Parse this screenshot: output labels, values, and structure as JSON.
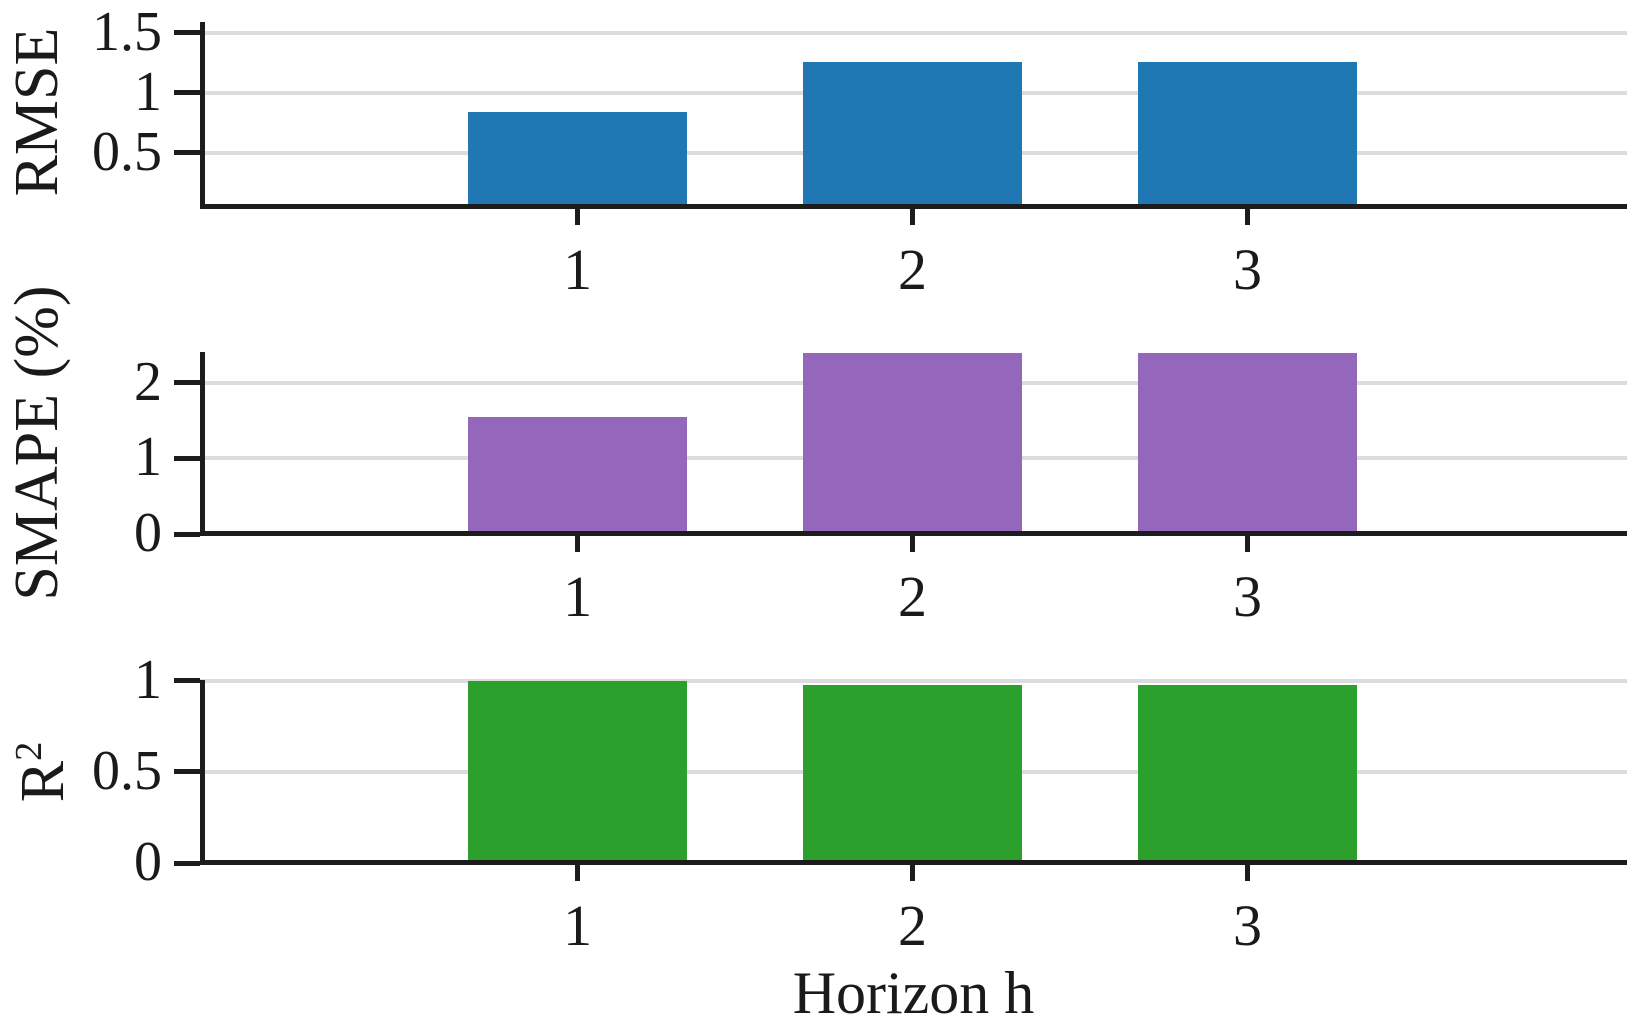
{
  "chart_data": {
    "type": "bar",
    "title": "",
    "xlabel": "Horizon h",
    "categories": [
      "1",
      "2",
      "3"
    ],
    "grid": true,
    "legend": false,
    "subplots": [
      {
        "ylabel": "RMSE",
        "ylabel_sup": "",
        "bar_color": "#1f77b4",
        "values": [
          0.84,
          1.26,
          1.26
        ],
        "yticks": [
          {
            "value": 0.5,
            "label": "0.5"
          },
          {
            "value": 1,
            "label": "1"
          },
          {
            "value": 1.5,
            "label": "1.5"
          }
        ],
        "view": {
          "min": 0.05,
          "max": 1.59
        }
      },
      {
        "ylabel": "SMAPE (%)",
        "ylabel_sup": "",
        "bar_color": "#9467bd",
        "values": [
          1.55,
          2.4,
          2.4
        ],
        "yticks": [
          {
            "value": 0,
            "label": "0"
          },
          {
            "value": 1,
            "label": "1"
          },
          {
            "value": 2,
            "label": "2"
          }
        ],
        "view": {
          "min": 0,
          "max": 2.41
        }
      },
      {
        "ylabel": "R",
        "ylabel_sup": "2",
        "bar_color": "#2ca02c",
        "values": [
          1.0,
          0.98,
          0.98
        ],
        "yticks": [
          {
            "value": 0,
            "label": "0"
          },
          {
            "value": 0.5,
            "label": "0.5"
          },
          {
            "value": 1,
            "label": "1"
          }
        ],
        "view": {
          "min": 0,
          "max": 1.005
        }
      }
    ]
  },
  "colors": {
    "axis": "#1c1c1c",
    "grid": "#dcdcdc",
    "text": "#1a1a1a",
    "background": "#ffffff"
  }
}
